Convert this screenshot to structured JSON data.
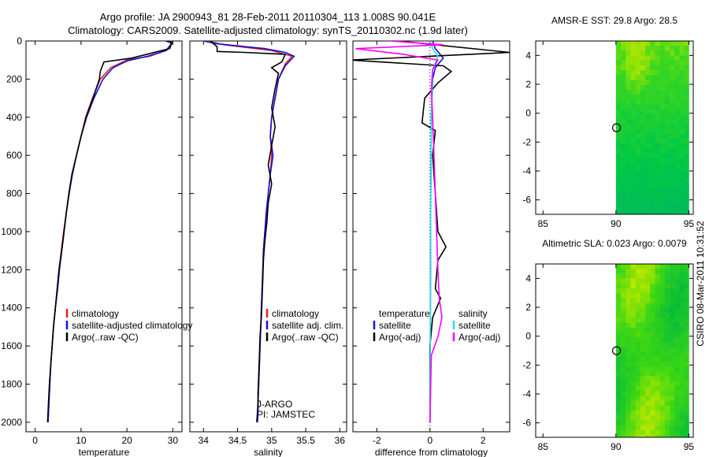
{
  "header": {
    "line1": "Argo profile: JA 2900943_81 28-Feb-2011 20110304_113 1.008S 90.041E",
    "line2": "Climatology: CARS2009. Satellite-adjusted climatology: synTS_20110302.nc (1.9d later)"
  },
  "credit": "CSIRO 08-Mar-2011 10:31:52",
  "colors": {
    "climatology": "#e02020",
    "satellite": "#1010e0",
    "argo": "#000000",
    "sal_satellite": "#20e0e0",
    "sal_argo": "#ff00ff"
  },
  "chart_data": [
    {
      "type": "line",
      "xlabel": "temperature",
      "xticks": [
        "0",
        "10",
        "20",
        "30"
      ],
      "yticks": [
        "0",
        "200",
        "400",
        "600",
        "800",
        "1000",
        "1200",
        "1400",
        "1600",
        "1800",
        "2000"
      ],
      "xlim": [
        -2,
        32
      ],
      "ylim": [
        2050,
        0
      ],
      "legend": {
        "placement": "lower-right",
        "entries": [
          "climatology",
          "satellite-adjusted climatology",
          "Argo(..raw -QC)"
        ]
      },
      "series": [
        {
          "name": "climatology",
          "color": "#e02020",
          "points": [
            [
              29.6,
              0
            ],
            [
              29.5,
              20
            ],
            [
              28.5,
              50
            ],
            [
              25,
              80
            ],
            [
              20,
              100
            ],
            [
              16.5,
              140
            ],
            [
              14.2,
              200
            ],
            [
              12.5,
              300
            ],
            [
              11,
              400
            ],
            [
              10,
              500
            ],
            [
              9,
              600
            ],
            [
              8,
              700
            ],
            [
              7.3,
              800
            ],
            [
              6.8,
              900
            ],
            [
              6.2,
              1000
            ],
            [
              5.7,
              1100
            ],
            [
              5.2,
              1200
            ],
            [
              4.8,
              1300
            ],
            [
              4.4,
              1400
            ],
            [
              4,
              1500
            ],
            [
              3.7,
              1600
            ],
            [
              3.4,
              1700
            ],
            [
              3.2,
              1800
            ],
            [
              3,
              1900
            ],
            [
              2.8,
              2000
            ]
          ]
        },
        {
          "name": "satellite-adjusted climatology",
          "color": "#1010e0",
          "points": [
            [
              29.8,
              0
            ],
            [
              29.6,
              20
            ],
            [
              28.6,
              50
            ],
            [
              24.5,
              80
            ],
            [
              20,
              105
            ],
            [
              17,
              140
            ],
            [
              14.8,
              200
            ],
            [
              12.8,
              300
            ],
            [
              11.2,
              400
            ],
            [
              10,
              500
            ],
            [
              9,
              600
            ],
            [
              8,
              700
            ],
            [
              7.4,
              800
            ],
            [
              6.8,
              900
            ],
            [
              6.3,
              1000
            ],
            [
              5.8,
              1100
            ],
            [
              5.3,
              1200
            ],
            [
              4.9,
              1300
            ],
            [
              4.4,
              1400
            ],
            [
              4,
              1500
            ],
            [
              3.7,
              1600
            ],
            [
              3.4,
              1700
            ],
            [
              3.2,
              1800
            ],
            [
              3,
              1900
            ],
            [
              2.8,
              2000
            ]
          ]
        },
        {
          "name": "Argo(..raw -QC)",
          "color": "#000000",
          "points": [
            [
              28.5,
              0
            ],
            [
              29.8,
              10
            ],
            [
              29.3,
              40
            ],
            [
              21,
              90
            ],
            [
              15,
              110
            ],
            [
              14.2,
              160
            ],
            [
              14,
              200
            ],
            [
              12.6,
              300
            ],
            [
              11.1,
              400
            ],
            [
              10,
              500
            ],
            [
              9,
              600
            ],
            [
              8.1,
              700
            ],
            [
              7.4,
              800
            ],
            [
              6.8,
              900
            ],
            [
              6.3,
              1000
            ],
            [
              5.8,
              1100
            ],
            [
              5.2,
              1200
            ],
            [
              4.8,
              1300
            ],
            [
              4.4,
              1400
            ],
            [
              4,
              1500
            ],
            [
              3.7,
              1600
            ],
            [
              3.4,
              1700
            ],
            [
              3.1,
              1800
            ],
            [
              2.9,
              1900
            ],
            [
              2.7,
              2000
            ]
          ]
        }
      ]
    },
    {
      "type": "line",
      "xlabel": "salinity",
      "xticks": [
        "34",
        "34.5",
        "35",
        "35.5",
        "36"
      ],
      "yticks": [],
      "xlim": [
        33.8,
        36.1
      ],
      "ylim": [
        2050,
        0
      ],
      "legend": {
        "placement": "lower-right",
        "entries": [
          "climatology",
          "satellite adj. clim.",
          "Argo(..raw -QC)"
        ]
      },
      "annotation": [
        "J-ARGO",
        "PI: JAMSTEC"
      ],
      "series": [
        {
          "name": "climatology",
          "color": "#e02020",
          "points": [
            [
              34.05,
              0
            ],
            [
              34.3,
              20
            ],
            [
              35,
              50
            ],
            [
              35.3,
              80
            ],
            [
              35.2,
              120
            ],
            [
              35.1,
              200
            ],
            [
              35.05,
              300
            ],
            [
              35,
              400
            ],
            [
              34.98,
              500
            ],
            [
              35,
              600
            ],
            [
              34.98,
              700
            ],
            [
              34.95,
              800
            ],
            [
              34.93,
              900
            ],
            [
              34.9,
              1000
            ],
            [
              34.88,
              1100
            ],
            [
              34.87,
              1200
            ],
            [
              34.86,
              1300
            ],
            [
              34.85,
              1400
            ],
            [
              34.84,
              1500
            ],
            [
              34.83,
              1600
            ],
            [
              34.82,
              1700
            ],
            [
              34.81,
              1800
            ],
            [
              34.8,
              1900
            ],
            [
              34.79,
              2000
            ]
          ]
        },
        {
          "name": "satellite adj. clim.",
          "color": "#1010e0",
          "points": [
            [
              34.0,
              0
            ],
            [
              34.2,
              15
            ],
            [
              34.9,
              40
            ],
            [
              35.2,
              60
            ],
            [
              35.33,
              80
            ],
            [
              35.2,
              130
            ],
            [
              35.1,
              200
            ],
            [
              35.05,
              300
            ],
            [
              35,
              400
            ],
            [
              34.98,
              500
            ],
            [
              35.02,
              600
            ],
            [
              34.98,
              700
            ],
            [
              34.95,
              800
            ],
            [
              34.92,
              900
            ],
            [
              34.9,
              1000
            ],
            [
              34.88,
              1100
            ],
            [
              34.87,
              1200
            ],
            [
              34.86,
              1300
            ],
            [
              34.85,
              1400
            ],
            [
              34.84,
              1500
            ],
            [
              34.83,
              1600
            ],
            [
              34.82,
              1700
            ],
            [
              34.81,
              1800
            ],
            [
              34.8,
              1900
            ],
            [
              34.78,
              2000
            ]
          ]
        },
        {
          "name": "Argo(..raw -QC)",
          "color": "#000000",
          "points": [
            [
              34.1,
              0
            ],
            [
              34.2,
              30
            ],
            [
              34.2,
              55
            ],
            [
              34.6,
              60
            ],
            [
              35.2,
              70
            ],
            [
              35.15,
              110
            ],
            [
              35.0,
              140
            ],
            [
              35.1,
              170
            ],
            [
              35.05,
              250
            ],
            [
              35.0,
              350
            ],
            [
              35.05,
              450
            ],
            [
              35.0,
              550
            ],
            [
              34.95,
              650
            ],
            [
              35.0,
              750
            ],
            [
              34.95,
              850
            ],
            [
              34.93,
              950
            ],
            [
              34.9,
              1050
            ],
            [
              34.88,
              1150
            ],
            [
              34.87,
              1250
            ],
            [
              34.86,
              1350
            ],
            [
              34.85,
              1450
            ],
            [
              34.83,
              1550
            ],
            [
              34.82,
              1650
            ],
            [
              34.81,
              1750
            ],
            [
              34.8,
              1850
            ],
            [
              34.8,
              1950
            ],
            [
              34.79,
              2000
            ]
          ]
        }
      ]
    },
    {
      "type": "line",
      "xlabel": "difference from climatology",
      "xticks": [
        "-2",
        "0",
        "2"
      ],
      "yticks": [],
      "xlim": [
        -2.9,
        3
      ],
      "ylim": [
        2050,
        0
      ],
      "legend": {
        "placement": "lower-center",
        "headers": [
          "temperature",
          "salinity"
        ],
        "entries": [
          "satellite",
          "Argo(-adj)",
          "satellite",
          "Argo(-adj)"
        ]
      },
      "series": [
        {
          "name": "satellite",
          "color": "#1010e0",
          "points": [
            [
              0.1,
              0
            ],
            [
              0.2,
              40
            ],
            [
              0.5,
              90
            ],
            [
              0.2,
              140
            ],
            [
              0.1,
              200
            ],
            [
              0.05,
              400
            ],
            [
              0.03,
              800
            ],
            [
              0.02,
              1200
            ],
            [
              0.01,
              1600
            ],
            [
              0,
              2000
            ]
          ]
        },
        {
          "name": "Argo(-adj)",
          "color": "#000000",
          "points": [
            [
              -1.2,
              0
            ],
            [
              3,
              60
            ],
            [
              -3,
              100
            ],
            [
              0.5,
              130
            ],
            [
              0.8,
              160
            ],
            [
              0.3,
              220
            ],
            [
              -0.2,
              300
            ],
            [
              -0.3,
              430
            ],
            [
              0.2,
              470
            ],
            [
              0.1,
              600
            ],
            [
              0.2,
              800
            ],
            [
              0.3,
              1000
            ],
            [
              0.6,
              1080
            ],
            [
              0.3,
              1150
            ],
            [
              0.2,
              1300
            ],
            [
              0.4,
              1350
            ],
            [
              0.1,
              1450
            ],
            [
              0,
              1600
            ],
            [
              0,
              2000
            ]
          ]
        },
        {
          "name": "satellite",
          "color": "#20e0e0",
          "points": [
            [
              0,
              0
            ],
            [
              0.1,
              40
            ],
            [
              0.3,
              80
            ],
            [
              0.1,
              150
            ],
            [
              0.05,
              400
            ],
            [
              0.03,
              800
            ],
            [
              0.02,
              1200
            ],
            [
              0.01,
              1600
            ],
            [
              0,
              2000
            ]
          ]
        },
        {
          "name": "Argo(-adj)",
          "color": "#ff00ff",
          "points": [
            [
              -1.5,
              0
            ],
            [
              0.5,
              20
            ],
            [
              -2.8,
              40
            ],
            [
              -1,
              70
            ],
            [
              0.3,
              100
            ],
            [
              0.1,
              150
            ],
            [
              0.05,
              250
            ],
            [
              0.1,
              400
            ],
            [
              0.15,
              600
            ],
            [
              0.2,
              800
            ],
            [
              0.25,
              1000
            ],
            [
              0.3,
              1200
            ],
            [
              0.35,
              1350
            ],
            [
              0.45,
              1450
            ],
            [
              0.3,
              1550
            ],
            [
              0.05,
              1650
            ],
            [
              0,
              2000
            ]
          ]
        }
      ]
    },
    {
      "type": "heatmap",
      "title": "AMSR-E SST: 29.8 Argo: 28.5",
      "xticks": [
        "85",
        "90",
        "95"
      ],
      "yticks": [
        "4",
        "2",
        "0",
        "-2",
        "-4",
        "-6"
      ],
      "xlim": [
        84.5,
        95.3
      ],
      "ylim": [
        -7,
        5
      ],
      "data_extent": {
        "lon": [
          90,
          95
        ],
        "lat": [
          -7,
          5
        ]
      },
      "marker": {
        "lon": 90.041,
        "lat": -1.008
      }
    },
    {
      "type": "heatmap",
      "title": "Altimetric SLA: 0.023 Argo: 0.0079",
      "xticks": [
        "85",
        "90",
        "95"
      ],
      "yticks": [
        "4",
        "2",
        "0",
        "-2",
        "-4",
        "-6"
      ],
      "xlim": [
        84.5,
        95.3
      ],
      "ylim": [
        -7,
        5
      ],
      "data_extent": {
        "lon": [
          90,
          95
        ],
        "lat": [
          -7,
          5
        ]
      },
      "marker": {
        "lon": 90.041,
        "lat": -1.008
      }
    }
  ]
}
